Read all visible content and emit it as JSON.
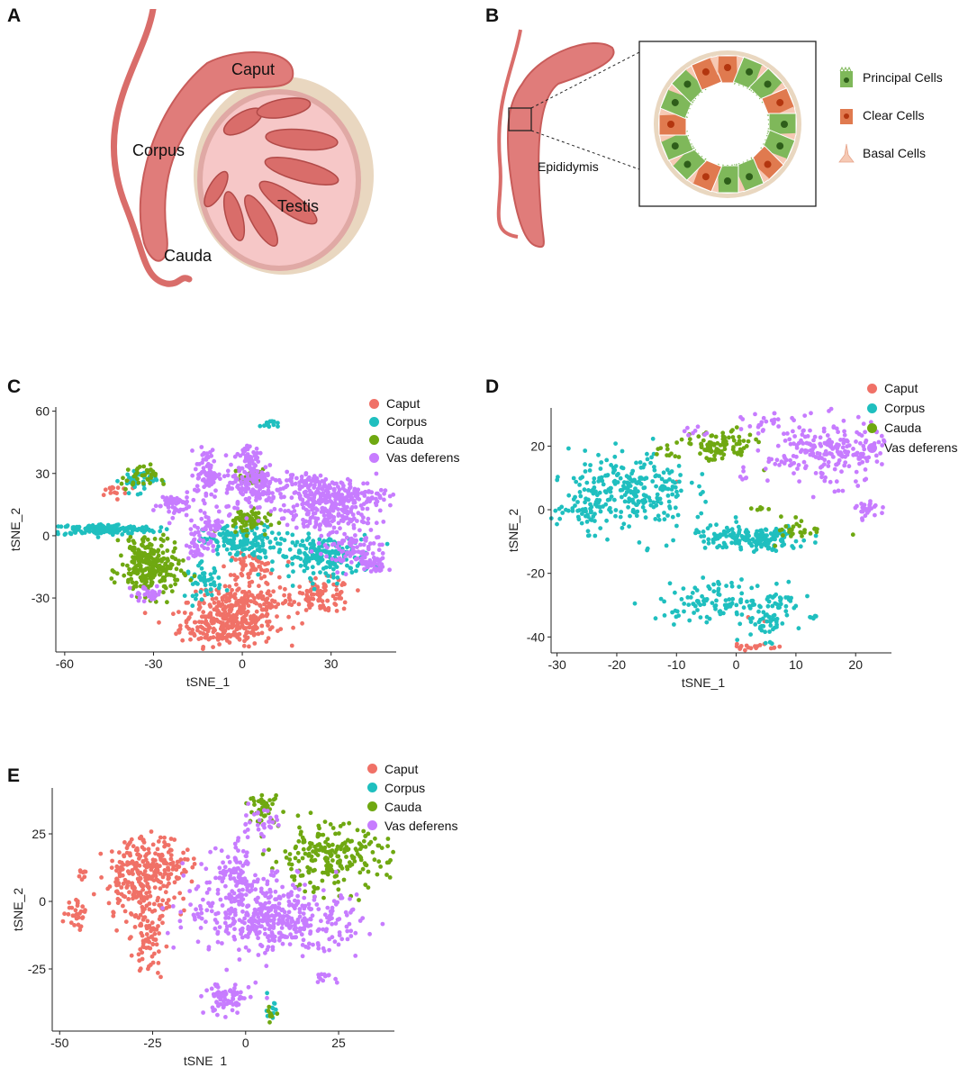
{
  "colors": {
    "caput": "#F07167",
    "corpus": "#1FBFBF",
    "cauda": "#6FA811",
    "vas": "#C77CFF",
    "tissue": "#E58A87",
    "tissue_dark": "#C85C5A",
    "capsule": "#E9D7C0",
    "principal": "#7FB85A",
    "clear": "#E07A4F",
    "basal": "#F6C9B4"
  },
  "panels": {
    "A": {
      "letter": "A",
      "labels": {
        "caput": "Caput",
        "corpus": "Corpus",
        "testis": "Testis",
        "cauda": "Cauda"
      }
    },
    "B": {
      "letter": "B",
      "epididymis": "Epididymis",
      "legend": [
        {
          "name": "Principal Cells",
          "icon": "principal-cell-icon"
        },
        {
          "name": "Clear Cells",
          "icon": "clear-cell-icon"
        },
        {
          "name": "Basal Cells",
          "icon": "basal-cell-icon"
        }
      ]
    },
    "C": {
      "letter": "C"
    },
    "D": {
      "letter": "D"
    },
    "E": {
      "letter": "E"
    }
  },
  "chart_data": [
    {
      "id": "C",
      "type": "scatter",
      "xlabel": "tSNE_1",
      "ylabel": "tSNE_2",
      "xlim": [
        -63,
        52
      ],
      "ylim": [
        -56,
        62
      ],
      "xticks": [
        -60,
        -30,
        0,
        30
      ],
      "yticks": [
        -30,
        0,
        30,
        60
      ],
      "series": [
        {
          "name": "Caput",
          "key": "caput",
          "clusters": [
            [
              -5,
              -43,
              8,
              5,
              260
            ],
            [
              0,
              -32,
              9,
              4,
              150
            ],
            [
              27,
              -29,
              5,
              4,
              90
            ],
            [
              3,
              -15,
              4,
              3,
              60
            ],
            [
              -44,
              22,
              3,
              2,
              15
            ]
          ]
        },
        {
          "name": "Corpus",
          "key": "corpus",
          "clusters": [
            [
              -47,
              3,
              9,
              1.3,
              170
            ],
            [
              -1,
              -3,
              6,
              4,
              150
            ],
            [
              28,
              -10,
              8,
              5,
              190
            ],
            [
              -13,
              -22,
              3,
              4,
              50
            ],
            [
              -35,
              27,
              3,
              3,
              40
            ],
            [
              9,
              54,
              1.5,
              1,
              15
            ]
          ]
        },
        {
          "name": "Cauda",
          "key": "cauda",
          "clusters": [
            [
              -31,
              -17,
              5,
              6,
              220
            ],
            [
              -33,
              -6,
              3,
              3,
              50
            ],
            [
              1,
              7,
              4,
              3,
              60
            ],
            [
              -35,
              28,
              3,
              3,
              35
            ],
            [
              3,
              28,
              2,
              2,
              25
            ]
          ]
        },
        {
          "name": "Vas deferens",
          "key": "vas",
          "clusters": [
            [
              -12,
              30,
              2,
              6,
              80
            ],
            [
              4,
              25,
              5,
              7,
              170
            ],
            [
              31,
              19,
              9,
              4,
              240
            ],
            [
              28,
              8,
              7,
              3,
              100
            ],
            [
              -24,
              15,
              3,
              3,
              50
            ],
            [
              37,
              -7,
              6,
              5,
              90
            ],
            [
              45,
              -14,
              2,
              3,
              30
            ],
            [
              21,
              27,
              3,
              2,
              40
            ],
            [
              2,
              39,
              2,
              2,
              30
            ],
            [
              -10,
              5,
              2,
              4,
              40
            ],
            [
              -15,
              -4,
              2,
              4,
              40
            ],
            [
              -32,
              -28,
              3,
              2,
              30
            ]
          ]
        }
      ]
    },
    {
      "id": "D",
      "type": "scatter",
      "xlabel": "tSNE_1",
      "ylabel": "tSNE_2",
      "xlim": [
        -31,
        26
      ],
      "ylim": [
        -45,
        32
      ],
      "xticks": [
        -30,
        -20,
        -10,
        0,
        10,
        20
      ],
      "yticks": [
        -40,
        -20,
        0,
        20
      ],
      "series": [
        {
          "name": "Caput",
          "key": "caput",
          "clusters": [
            [
              3,
              -43,
              2,
              0.6,
              18
            ],
            [
              -10,
              9,
              0.3,
              0.3,
              1
            ],
            [
              2,
              -34,
              0.3,
              0.3,
              1
            ],
            [
              5,
              -35,
              0.3,
              0.3,
              1
            ]
          ]
        },
        {
          "name": "Corpus",
          "key": "corpus",
          "clusters": [
            [
              -18,
              6,
              5,
              6,
              260
            ],
            [
              -25,
              -1,
              3,
              2,
              40
            ],
            [
              2,
              -9,
              5,
              2,
              170
            ],
            [
              -3,
              -29,
              5,
              3,
              110
            ],
            [
              5,
              -35,
              2,
              3,
              50
            ],
            [
              7,
              -28,
              2,
              0.6,
              15
            ],
            [
              13,
              -34,
              0.5,
              0.4,
              6
            ]
          ]
        },
        {
          "name": "Cauda",
          "key": "cauda",
          "clusters": [
            [
              -3,
              20,
              3,
              2.5,
              90
            ],
            [
              11,
              -6,
              2,
              2,
              30
            ],
            [
              -12,
              18,
              1,
              1,
              10
            ],
            [
              5,
              0,
              1,
              0.5,
              6
            ]
          ]
        },
        {
          "name": "Vas deferens",
          "key": "vas",
          "clusters": [
            [
              15,
              18,
              5,
              5,
              220
            ],
            [
              22,
              0,
              1,
              1.5,
              25
            ],
            [
              5,
              27,
              2,
              1.5,
              20
            ],
            [
              1,
              10,
              0.5,
              0.4,
              4
            ],
            [
              -7,
              24,
              1,
              1,
              8
            ]
          ]
        }
      ]
    },
    {
      "id": "E",
      "type": "scatter",
      "xlabel": "tSNE_1",
      "ylabel": "tSNE_2",
      "xlim": [
        -52,
        40
      ],
      "ylim": [
        -48,
        42
      ],
      "xticks": [
        -50,
        -25,
        0,
        25
      ],
      "yticks": [
        -25,
        0,
        25
      ],
      "series": [
        {
          "name": "Caput",
          "key": "caput",
          "clusters": [
            [
              -28,
              8,
              5,
              8,
              230
            ],
            [
              -22,
              14,
              4,
              5,
              80
            ],
            [
              -26,
              -15,
              2,
              6,
              60
            ],
            [
              -46,
              -4,
              1.5,
              3,
              30
            ],
            [
              -44,
              10,
              0.6,
              1.5,
              8
            ]
          ]
        },
        {
          "name": "Corpus",
          "key": "corpus",
          "clusters": [
            [
              7,
              -40,
              1,
              2,
              10
            ]
          ]
        },
        {
          "name": "Cauda",
          "key": "cauda",
          "clusters": [
            [
              22,
              16,
              8,
              6,
              220
            ],
            [
              5,
              34,
              2,
              3,
              40
            ],
            [
              7,
              -42,
              0.7,
              1.5,
              8
            ]
          ]
        },
        {
          "name": "Vas deferens",
          "key": "vas",
          "clusters": [
            [
              2,
              -3,
              9,
              8,
              300
            ],
            [
              15,
              -8,
              8,
              5,
              180
            ],
            [
              -3,
              10,
              3,
              5,
              60
            ],
            [
              -5,
              -36,
              3,
              3,
              80
            ],
            [
              3,
              29,
              3,
              3,
              30
            ],
            [
              21,
              -28,
              1.5,
              1,
              12
            ]
          ]
        }
      ]
    }
  ]
}
